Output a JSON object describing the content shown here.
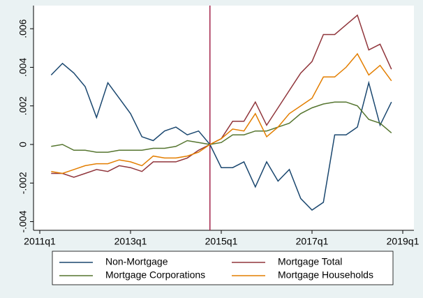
{
  "chart_data": {
    "type": "line",
    "x": [
      "2011q2",
      "2011q3",
      "2011q4",
      "2012q1",
      "2012q2",
      "2012q3",
      "2012q4",
      "2013q1",
      "2013q2",
      "2013q3",
      "2013q4",
      "2014q1",
      "2014q2",
      "2014q3",
      "2014q4",
      "2015q1",
      "2015q2",
      "2015q3",
      "2015q4",
      "2016q1",
      "2016q2",
      "2016q3",
      "2016q4",
      "2017q1",
      "2017q2",
      "2017q3",
      "2017q4",
      "2018q1",
      "2018q2",
      "2018q3",
      "2018q4"
    ],
    "series": [
      {
        "name": "Non-Mortgage",
        "color": "#1a476f",
        "values": [
          0.0036,
          0.0042,
          0.0037,
          0.003,
          0.0014,
          0.0032,
          0.0024,
          0.0016,
          0.0004,
          0.0002,
          0.0007,
          0.0009,
          0.0005,
          0.0007,
          0,
          -0.0012,
          -0.0012,
          -0.0009,
          -0.0022,
          -0.0009,
          -0.0019,
          -0.0013,
          -0.0028,
          -0.0034,
          -0.003,
          0.0005,
          0.0005,
          0.0009,
          0.0032,
          0.001,
          0.0022
        ]
      },
      {
        "name": "Mortgage Total",
        "color": "#90353b",
        "values": [
          -0.0015,
          -0.0015,
          -0.0017,
          -0.0015,
          -0.0013,
          -0.0014,
          -0.0011,
          -0.0012,
          -0.0014,
          -0.0009,
          -0.0009,
          -0.0009,
          -0.0007,
          -0.0003,
          0,
          0.0003,
          0.0012,
          0.0012,
          0.0022,
          0.001,
          0.0019,
          0.0028,
          0.0037,
          0.0043,
          0.0057,
          0.0057,
          0.0062,
          0.0067,
          0.0049,
          0.0052,
          0.0039
        ]
      },
      {
        "name": "Mortgage Corporations",
        "color": "#55752f",
        "values": [
          -0.0001,
          0,
          -0.0003,
          -0.0003,
          -0.0004,
          -0.0004,
          -0.0003,
          -0.0003,
          -0.0003,
          -0.0002,
          -0.0002,
          -0.0001,
          0.0002,
          0.0001,
          0,
          0.0001,
          0.0005,
          0.0005,
          0.0007,
          0.0007,
          0.0009,
          0.0011,
          0.0016,
          0.0019,
          0.0021,
          0.0022,
          0.0022,
          0.002,
          0.0013,
          0.0011,
          0.0006
        ]
      },
      {
        "name": "Mortgage Households",
        "color": "#e37e00",
        "values": [
          -0.0014,
          -0.0015,
          -0.0013,
          -0.0011,
          -0.001,
          -0.001,
          -0.0008,
          -0.0009,
          -0.0011,
          -0.0006,
          -0.0007,
          -0.0007,
          -0.0006,
          -0.0004,
          0,
          0.0003,
          0.0008,
          0.0007,
          0.0016,
          0.0004,
          0.0009,
          0.0016,
          0.002,
          0.0024,
          0.0035,
          0.0035,
          0.004,
          0.0047,
          0.0036,
          0.0041,
          0.0033
        ]
      }
    ],
    "xlim": [
      "2011q1",
      "2019q1"
    ],
    "xticks": [
      "2011q1",
      "2013q1",
      "2015q1",
      "2017q1",
      "2019q1"
    ],
    "ylim": [
      -0.00445,
      0.0072
    ],
    "yticks": [
      {
        "value": 0.006,
        "label": ".006"
      },
      {
        "value": 0.004,
        "label": ".004"
      },
      {
        "value": 0.002,
        "label": ".002"
      },
      0,
      {
        "value": -0.002,
        "label": "-.002"
      },
      {
        "value": -0.004,
        "label": "-.004"
      }
    ],
    "vline": {
      "x": "2014q4",
      "color": "#a3254b"
    },
    "grid": false,
    "legend": "bottom"
  }
}
